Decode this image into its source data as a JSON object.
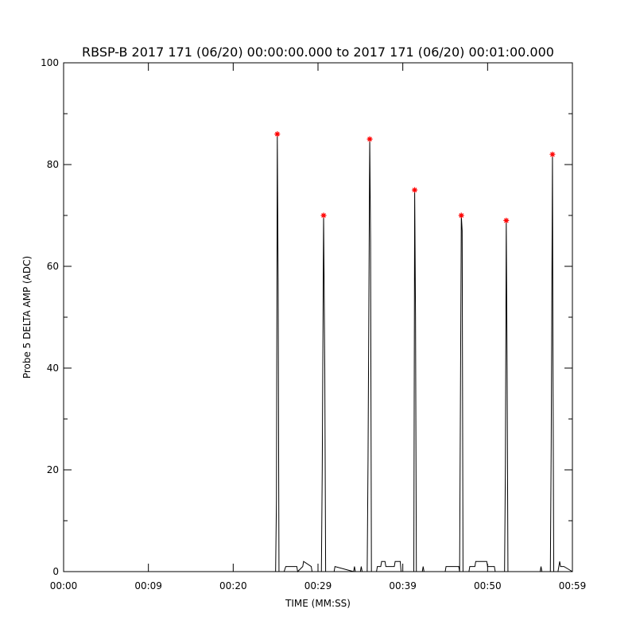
{
  "chart_data": {
    "type": "line",
    "title": "RBSP-B 2017 171 (06/20) 00:00:00.000 to 2017 171 (06/20) 00:01:00.000",
    "x_label": "TIME (MM:SS)",
    "y_label": "Probe 5 DELTA AMP (ADC)",
    "xlim": [
      0,
      60
    ],
    "ylim": [
      0,
      100
    ],
    "xticks": [
      {
        "value": 0,
        "label": "00:00"
      },
      {
        "value": 10,
        "label": "00:09"
      },
      {
        "value": 20,
        "label": "00:20"
      },
      {
        "value": 30,
        "label": "00:29"
      },
      {
        "value": 40,
        "label": "00:39"
      },
      {
        "value": 50,
        "label": "00:50"
      },
      {
        "value": 60,
        "label": "00:59"
      }
    ],
    "yticks": [
      0,
      20,
      40,
      60,
      80,
      100
    ],
    "yminor_ticks": [
      10,
      30,
      50,
      70,
      90
    ],
    "series": [
      {
        "color": "#000000",
        "style": "line",
        "x": [
          0,
          25.0,
          25.1,
          25.2,
          25.3,
          25.4,
          26.0,
          26.2,
          27.5,
          27.6,
          28.2,
          28.3,
          29.2,
          29.3,
          30.4,
          30.5,
          30.66,
          30.8,
          30.9,
          31.9,
          32.0,
          34.2,
          34.3,
          34.4,
          35.0,
          35.1,
          35.2,
          35.8,
          35.9,
          36.1,
          36.2,
          36.3,
          36.9,
          37.0,
          37.4,
          37.5,
          37.9,
          38.0,
          39.0,
          39.1,
          39.7,
          39.8,
          40.3,
          41.2,
          41.3,
          41.4,
          41.5,
          41.6,
          42.3,
          42.4,
          42.5,
          45.0,
          45.1,
          46.0,
          46.6,
          46.7,
          46.9,
          47.0,
          47.1,
          47.8,
          47.9,
          48.5,
          48.6,
          49.9,
          50.0,
          50.8,
          50.9,
          52.0,
          52.1,
          52.2,
          52.3,
          52.4,
          56.2,
          56.3,
          56.4,
          57.4,
          57.5,
          57.65,
          57.7,
          57.8,
          58.3,
          58.4,
          58.5,
          58.6,
          59.0,
          60
        ],
        "values": [
          0,
          0,
          14,
          86,
          57,
          0,
          0,
          1,
          1,
          0,
          1,
          2,
          1,
          0,
          0,
          20,
          70,
          40,
          0,
          0,
          1,
          0,
          1,
          0,
          0,
          1,
          0,
          0,
          22,
          85,
          65,
          0,
          0,
          1,
          1,
          2,
          2,
          1,
          1,
          2,
          2,
          0,
          0,
          0,
          0,
          75,
          50,
          0,
          0,
          1,
          0,
          0,
          1,
          1,
          1,
          0,
          70,
          67,
          0,
          0,
          1,
          1,
          2,
          2,
          1,
          1,
          0,
          0,
          21,
          69,
          40,
          0,
          0,
          1,
          0,
          0,
          25,
          82,
          46,
          0,
          0,
          1,
          2,
          1,
          1,
          0
        ]
      },
      {
        "color": "#ff0000",
        "style": "star",
        "x": [
          25.2,
          30.66,
          36.1,
          41.4,
          46.9,
          52.2,
          57.65
        ],
        "values": [
          86,
          70,
          85,
          75,
          70,
          69,
          82
        ]
      }
    ]
  }
}
